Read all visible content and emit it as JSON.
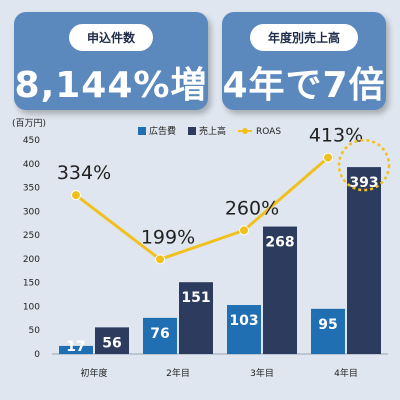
{
  "cards": [
    {
      "label": "申込件数",
      "value": "8,144%増"
    },
    {
      "label": "年度別売上高",
      "value": "4年で7倍"
    }
  ],
  "chart_data": {
    "type": "bar",
    "unit_label": "(百万円)",
    "categories": [
      "初年度",
      "2年目",
      "3年目",
      "4年目"
    ],
    "ylim": [
      0,
      450
    ],
    "yticks": [
      0,
      50,
      100,
      150,
      200,
      250,
      300,
      350,
      400,
      450
    ],
    "series": [
      {
        "name": "広告費",
        "values": [
          17,
          76,
          103,
          95
        ],
        "color": "#1f6fb2"
      },
      {
        "name": "売上高",
        "values": [
          56,
          151,
          268,
          393
        ],
        "color": "#2d3b5e"
      }
    ],
    "line": {
      "name": "ROAS",
      "labels": [
        "334%",
        "199%",
        "260%",
        "413%"
      ],
      "values": [
        334,
        199,
        260,
        413
      ],
      "color": "#f2c01c"
    },
    "highlight_category": "4年目"
  }
}
